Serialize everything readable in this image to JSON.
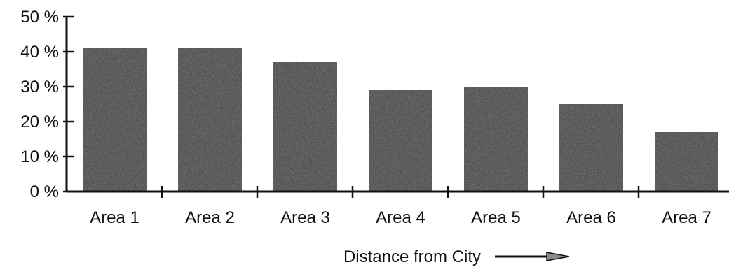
{
  "chart_data": {
    "type": "bar",
    "title": "",
    "xlabel": "Distance from City",
    "ylabel": "",
    "categories": [
      "Area 1",
      "Area 2",
      "Area 3",
      "Area 4",
      "Area 5",
      "Area 6",
      "Area 7"
    ],
    "values": [
      41,
      41,
      37,
      29,
      30,
      25,
      17
    ],
    "unit": "%",
    "ylim": [
      0,
      50
    ],
    "yticks": [
      "0 %",
      "10 %",
      "20 %",
      "30 %",
      "40 %",
      "50 %"
    ],
    "grid": false,
    "legend": "none",
    "bar_color": "#2b2b2b",
    "axis_color": "#111111"
  }
}
